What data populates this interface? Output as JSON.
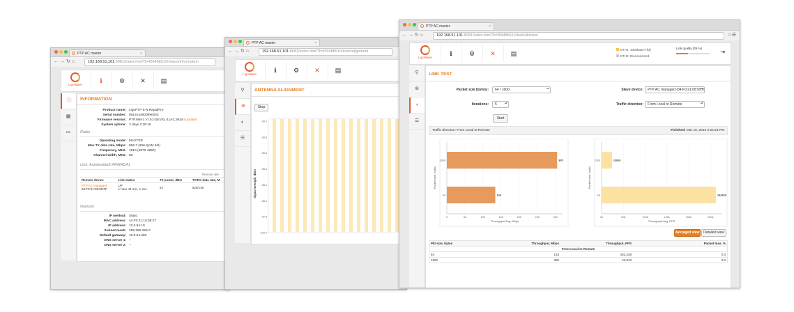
{
  "window1": {
    "tab_title": "PTP AC master",
    "url_host": "192.168.51.101",
    "url_path": ":8081/index.html?h=f5948b51#/status/information",
    "logo_text": "LigoWave",
    "section_title": "INFORMATION",
    "device": [
      {
        "k": "Product name:",
        "v": "LigoPTP 5-N RapidFire"
      },
      {
        "k": "Serial number:",
        "v": "0813144600990002"
      },
      {
        "k": "Firmware version:",
        "v": "PTP.MM-1 v7.51-DEVEL-11AC.8618",
        "link": "(Update)"
      },
      {
        "k": "System uptime:",
        "v": "3 days 2:39:16"
      }
    ],
    "radio_heading": "Radio",
    "radio": [
      {
        "k": "Operating mode:",
        "v": "MASTER"
      },
      {
        "k": "Max TX data rate, Mbps:",
        "v": "866.7 (256-QAM 5/6)"
      },
      {
        "k": "Frequency, MHz:",
        "v": "4910 (4870-4950)"
      },
      {
        "k": "Channel width, MHz:",
        "v": "80"
      }
    ],
    "link_heading": "Link: Autotestlab2-ARMADA1",
    "link_table": {
      "group_header": "Remote site",
      "headers": [
        "Remote device",
        "Link status",
        "TX power, dBm",
        "TX/RX data rate, M"
      ],
      "row": {
        "device": "PTP AC managed",
        "mac": "64:F0:21:08:99:0F",
        "status": "UP",
        "duration": "1 hour 44 min, 1 sec.",
        "tx_power": "23",
        "rate": "526/136"
      }
    },
    "network_heading": "Network",
    "network": [
      {
        "k": "IP method:",
        "v": "Static"
      },
      {
        "k": "MAC address:",
        "v": "44:F0:21:10:08:27"
      },
      {
        "k": "IP address:",
        "v": "10.0.94.10"
      },
      {
        "k": "Subnet mask:",
        "v": "255.255.255.0"
      },
      {
        "k": "Default gateway:",
        "v": "10.0.94.250"
      },
      {
        "k": "DNS server 1:",
        "v": "--"
      },
      {
        "k": "DNS server 2:",
        "v": "--"
      }
    ]
  },
  "window2": {
    "tab_title": "PTP AC master",
    "url_host": "192.168.51.101",
    "url_path": ":8081/index.html?h=f5948b51#/tools/alignment",
    "logo_text": "LigoWave",
    "section_title": "ANTENNA ALIGNMENT",
    "stop_label": "Stop",
    "ylabel": "Signal strength, dBm",
    "yticks": [
      "-99.0",
      "-98.8",
      "-98.6",
      "-98.4",
      "-98.2",
      "-98.0",
      "-97.8",
      "-100.0"
    ]
  },
  "window3": {
    "tab_title": "PTP AC master",
    "url_host": "192.168.51.101",
    "url_path": ":8081/index.html?h=f5948b51#/tools/linktest",
    "logo_text": "LigoWave",
    "status": {
      "eth1": "ETH1: 1000baseT-full",
      "eth0": "ETH0: Disconnected",
      "quality_label": "Link quality (36 %)",
      "quality": 0.36
    },
    "section_title": "LINK TEST",
    "packet_size_label": "Packet size (bytes):",
    "packet_size_value": "64 / 1600",
    "iterations_label": "Iterations:",
    "iterations_value": "5",
    "slave_label": "Slave device:",
    "slave_value": "PTP AC managed (04:F0:21:08:99:0",
    "direction_label": "Traffic direction:",
    "direction_value": "From Local to Remote",
    "start_label": "Start",
    "result_direction": "Traffic direction: From Local to Remote",
    "finished_label": "Finished:",
    "finished_value": "Mar 16, 2015 2:24:23 PM",
    "averaged_label": "Averaged view",
    "detailed_label": "Detailed view",
    "result_table": {
      "headers": [
        "Pkt size, bytes",
        "Throughput, Mbps",
        "Throughput, PPS",
        "Packet loss, %"
      ],
      "group": "From Local to Remote",
      "rows": [
        [
          "64",
          "134",
          "262,429",
          "0.0"
        ],
        [
          "1600",
          "305",
          "23,810",
          "0.0"
        ]
      ]
    }
  },
  "chart_data": [
    {
      "type": "bar",
      "orientation": "horizontal",
      "categories": [
        "1600",
        "64"
      ],
      "values": [
        305,
        134
      ],
      "xlabel": "Throughput Avg, Mbps",
      "ylabel": "Packet size, bytes",
      "xlim": [
        0,
        320
      ],
      "xticks": [
        "0",
        "50",
        "100",
        "150",
        "200",
        "250",
        "300"
      ]
    },
    {
      "type": "bar",
      "orientation": "horizontal",
      "categories": [
        "1600",
        "64"
      ],
      "values": [
        23810,
        262429
      ],
      "xlabel": "Throughput Avg, PPS",
      "ylabel": "Packet size, bytes",
      "xlim": [
        0,
        275000
      ],
      "xticks": [
        "0k",
        "50k",
        "100k",
        "150k",
        "200k",
        "250k"
      ]
    }
  ],
  "colors": {
    "accent": "#e67e22",
    "bar1": "#e69a5c",
    "bar2": "#fbe1a2",
    "stripe": "#fde9b8"
  }
}
